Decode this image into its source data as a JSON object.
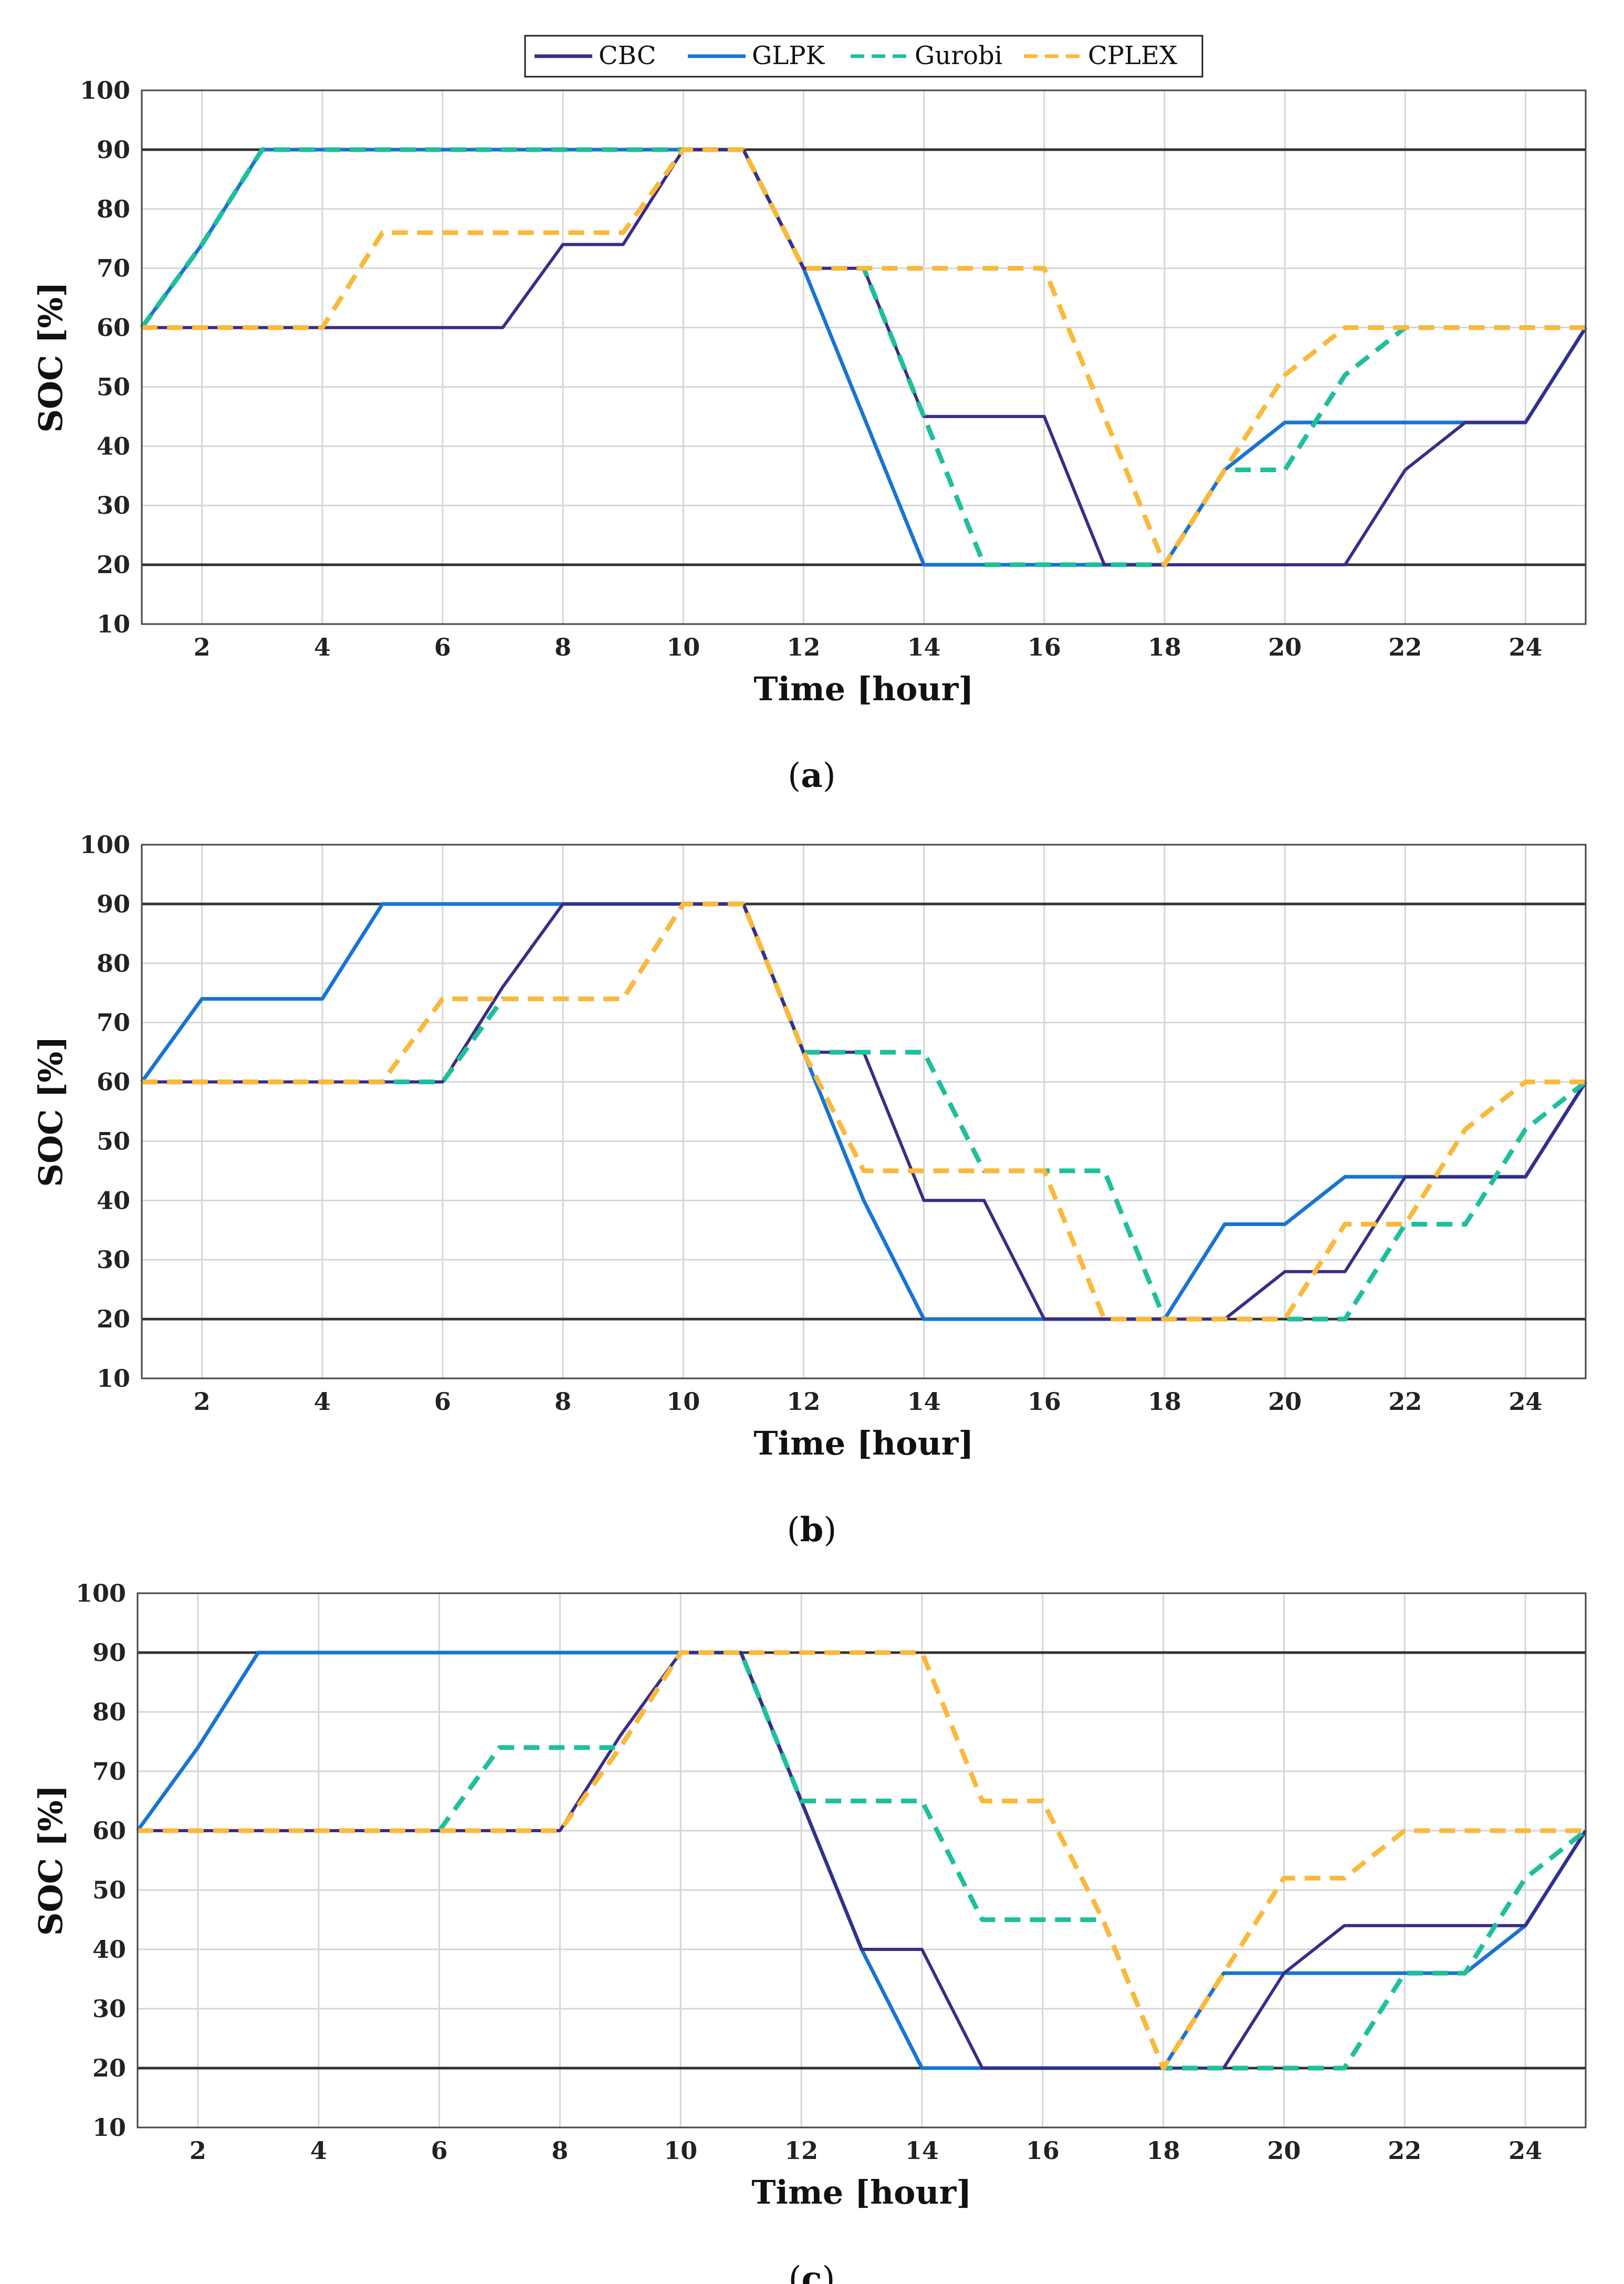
{
  "figure": {
    "colors": {
      "CBC": "#3b2c86",
      "GLPK": "#1874d2",
      "Gurobi": "#1fbf9c",
      "CPLEX": "#fbb83a",
      "limit": "#333333",
      "grid": "#d6d6d6",
      "axis": "#444444"
    }
  },
  "chart_data": [
    {
      "type": "line",
      "panel": "a",
      "panel_label_open": "(",
      "panel_label_letter": "a",
      "panel_label_close": ")",
      "xlabel": "Time [hour]",
      "ylabel": "SOC [%]",
      "xlim": [
        1,
        25
      ],
      "ylim": [
        10,
        100
      ],
      "xticks": [
        2,
        4,
        6,
        8,
        10,
        12,
        14,
        16,
        18,
        20,
        22,
        24
      ],
      "yticks": [
        10,
        20,
        30,
        40,
        50,
        60,
        70,
        80,
        90,
        100
      ],
      "grid": true,
      "legend": [
        "CBC",
        "GLPK",
        "Gurobi",
        "CPLEX"
      ],
      "limits": [
        90,
        20
      ],
      "x": [
        1,
        2,
        3,
        4,
        5,
        6,
        7,
        8,
        9,
        10,
        11,
        12,
        13,
        14,
        15,
        16,
        17,
        18,
        19,
        20,
        21,
        22,
        23,
        24,
        25
      ],
      "series": [
        {
          "name": "CBC",
          "style": "solid",
          "values": [
            60,
            60,
            60,
            60,
            60,
            60,
            60,
            74,
            74,
            90,
            90,
            70,
            70,
            45,
            45,
            45,
            20,
            20,
            20,
            20,
            20,
            36,
            44,
            44,
            60
          ]
        },
        {
          "name": "GLPK",
          "style": "solid",
          "values": [
            60,
            74,
            90,
            90,
            90,
            90,
            90,
            90,
            90,
            90,
            90,
            70,
            45,
            20,
            20,
            20,
            20,
            20,
            36,
            44,
            44,
            44,
            44,
            44,
            60
          ]
        },
        {
          "name": "Gurobi",
          "style": "dashed",
          "values": [
            60,
            74,
            90,
            90,
            90,
            90,
            90,
            90,
            90,
            90,
            90,
            70,
            70,
            45,
            20,
            20,
            20,
            20,
            36,
            36,
            52,
            60,
            60,
            60,
            60
          ]
        },
        {
          "name": "CPLEX",
          "style": "dashed",
          "values": [
            60,
            60,
            60,
            60,
            76,
            76,
            76,
            76,
            76,
            90,
            90,
            70,
            70,
            70,
            70,
            70,
            45,
            20,
            36,
            52,
            60,
            60,
            60,
            60,
            60
          ]
        }
      ]
    },
    {
      "type": "line",
      "panel": "b",
      "panel_label_open": "(",
      "panel_label_letter": "b",
      "panel_label_close": ")",
      "xlabel": "Time [hour]",
      "ylabel": "SOC [%]",
      "xlim": [
        1,
        25
      ],
      "ylim": [
        10,
        100
      ],
      "xticks": [
        2,
        4,
        6,
        8,
        10,
        12,
        14,
        16,
        18,
        20,
        22,
        24
      ],
      "yticks": [
        10,
        20,
        30,
        40,
        50,
        60,
        70,
        80,
        90,
        100
      ],
      "grid": true,
      "limits": [
        90,
        20
      ],
      "x": [
        1,
        2,
        3,
        4,
        5,
        6,
        7,
        8,
        9,
        10,
        11,
        12,
        13,
        14,
        15,
        16,
        17,
        18,
        19,
        20,
        21,
        22,
        23,
        24,
        25
      ],
      "series": [
        {
          "name": "CBC",
          "style": "solid",
          "values": [
            60,
            60,
            60,
            60,
            60,
            60,
            76,
            90,
            90,
            90,
            90,
            65,
            65,
            40,
            40,
            20,
            20,
            20,
            20,
            28,
            28,
            44,
            44,
            44,
            60
          ]
        },
        {
          "name": "GLPK",
          "style": "solid",
          "values": [
            60,
            74,
            74,
            74,
            90,
            90,
            90,
            90,
            90,
            90,
            90,
            65,
            40,
            20,
            20,
            20,
            20,
            20,
            36,
            36,
            44,
            44,
            44,
            44,
            60
          ]
        },
        {
          "name": "Gurobi",
          "style": "dashed",
          "values": [
            60,
            60,
            60,
            60,
            60,
            60,
            74,
            74,
            74,
            90,
            90,
            65,
            65,
            65,
            45,
            45,
            45,
            20,
            20,
            20,
            20,
            36,
            36,
            52,
            60
          ]
        },
        {
          "name": "CPLEX",
          "style": "dashed",
          "values": [
            60,
            60,
            60,
            60,
            60,
            74,
            74,
            74,
            74,
            90,
            90,
            65,
            45,
            45,
            45,
            45,
            20,
            20,
            20,
            20,
            36,
            36,
            52,
            60,
            60
          ]
        }
      ]
    },
    {
      "type": "line",
      "panel": "c",
      "panel_label_open": "(",
      "panel_label_letter": "c",
      "panel_label_close": ")",
      "xlabel": "Time [hour]",
      "ylabel": "SOC [%]",
      "xlim": [
        1,
        25
      ],
      "ylim": [
        10,
        100
      ],
      "xticks": [
        2,
        4,
        6,
        8,
        10,
        12,
        14,
        16,
        18,
        20,
        22,
        24
      ],
      "yticks": [
        10,
        20,
        30,
        40,
        50,
        60,
        70,
        80,
        90,
        100
      ],
      "grid": true,
      "limits": [
        90,
        20
      ],
      "x": [
        1,
        2,
        3,
        4,
        5,
        6,
        7,
        8,
        9,
        10,
        11,
        12,
        13,
        14,
        15,
        16,
        17,
        18,
        19,
        20,
        21,
        22,
        23,
        24,
        25
      ],
      "series": [
        {
          "name": "CBC",
          "style": "solid",
          "values": [
            60,
            60,
            60,
            60,
            60,
            60,
            60,
            60,
            76,
            90,
            90,
            65,
            40,
            40,
            20,
            20,
            20,
            20,
            20,
            36,
            44,
            44,
            44,
            44,
            60
          ]
        },
        {
          "name": "GLPK",
          "style": "solid",
          "values": [
            60,
            74,
            90,
            90,
            90,
            90,
            90,
            90,
            90,
            90,
            90,
            65,
            40,
            20,
            20,
            20,
            20,
            20,
            36,
            36,
            36,
            36,
            36,
            44,
            60
          ]
        },
        {
          "name": "Gurobi",
          "style": "dashed",
          "values": [
            60,
            60,
            60,
            60,
            60,
            60,
            74,
            74,
            74,
            90,
            90,
            65,
            65,
            65,
            45,
            45,
            45,
            20,
            20,
            20,
            20,
            36,
            36,
            52,
            60
          ]
        },
        {
          "name": "CPLEX",
          "style": "dashed",
          "values": [
            60,
            60,
            60,
            60,
            60,
            60,
            60,
            60,
            74,
            90,
            90,
            90,
            90,
            90,
            65,
            65,
            45,
            20,
            36,
            52,
            52,
            60,
            60,
            60,
            60
          ]
        }
      ]
    }
  ]
}
